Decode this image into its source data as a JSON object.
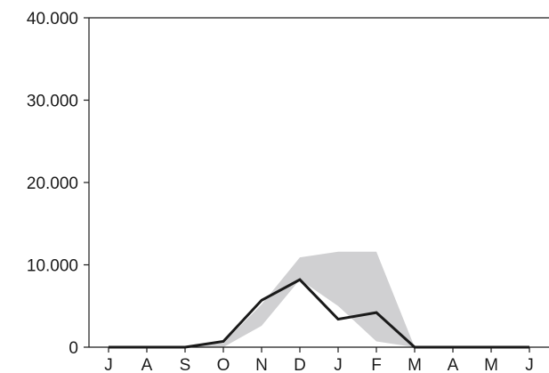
{
  "chart_data": {
    "type": "line",
    "title": "",
    "xlabel": "",
    "ylabel": "",
    "categories": [
      "J",
      "A",
      "S",
      "O",
      "N",
      "D",
      "J",
      "F",
      "M",
      "A",
      "M",
      "J"
    ],
    "ylim": [
      0,
      40000
    ],
    "yticks": [
      0,
      10000,
      20000,
      30000,
      40000
    ],
    "ytick_labels": [
      "0",
      "10.000",
      "20.000",
      "30.000",
      "40.000"
    ],
    "grid": false,
    "legend": "none",
    "series": [
      {
        "type": "line",
        "color": "#1a1a1a",
        "values": [
          0,
          0,
          0,
          700,
          5700,
          8200,
          3400,
          4200,
          0,
          0,
          0,
          0
        ]
      }
    ],
    "range_band": {
      "type": "area",
      "color": "#d0d0d2",
      "upper": [
        0,
        0,
        0,
        500,
        5200,
        10900,
        11600,
        11600,
        0,
        0,
        0,
        0
      ],
      "lower": [
        0,
        0,
        0,
        0,
        2600,
        8200,
        5000,
        700,
        0,
        0,
        0,
        0
      ]
    }
  }
}
